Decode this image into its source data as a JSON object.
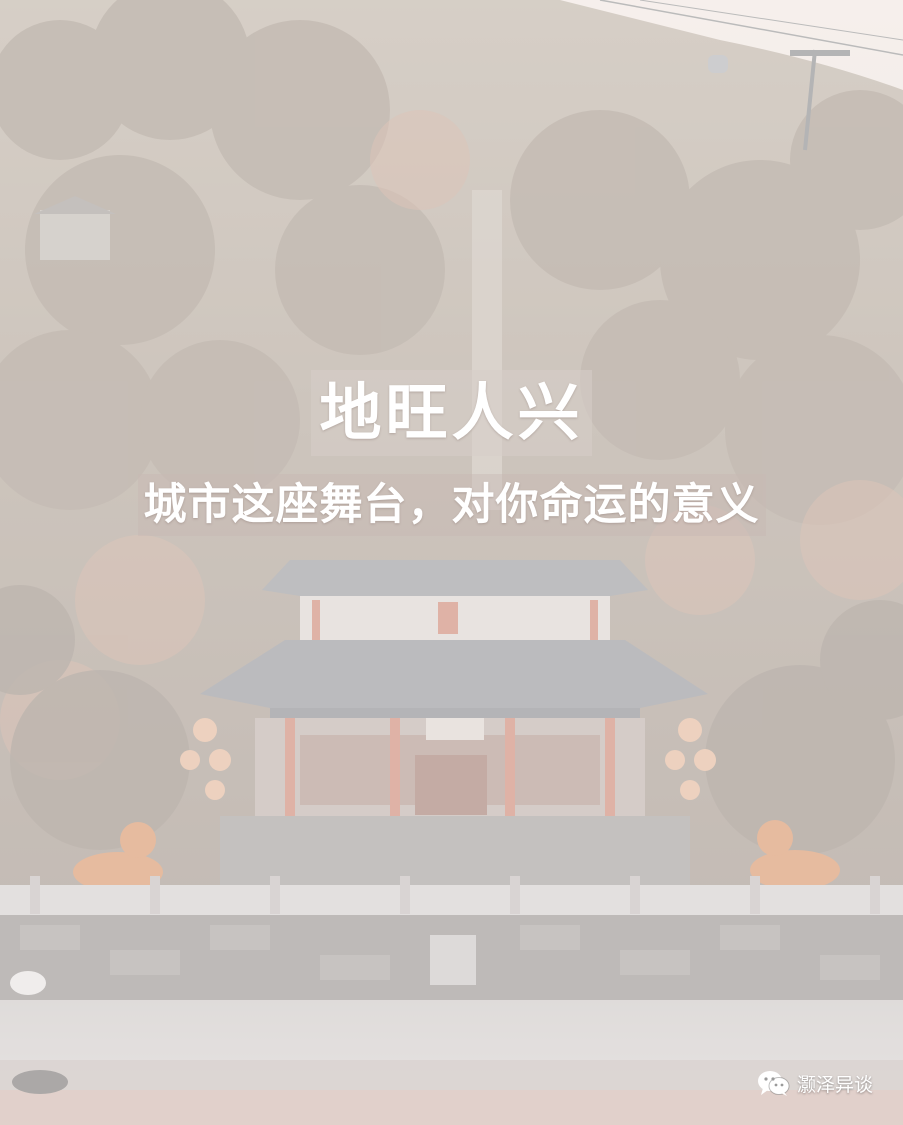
{
  "poster": {
    "title": "地旺人兴",
    "subtitle": "城市这座舞台，对你命运的意义"
  },
  "watermark": {
    "icon": "wechat-icon",
    "account_name": "灏泽异谈"
  },
  "colors": {
    "hillside": "#b9a59c",
    "temple_roof": "#8f8f93",
    "temple_pillar": "#c87a66",
    "lion_statue": "#d48a5a",
    "text": "#ffffff"
  }
}
